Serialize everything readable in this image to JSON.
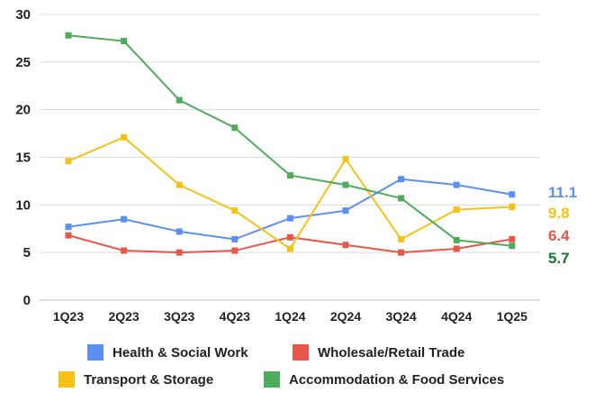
{
  "chart_data": {
    "type": "line",
    "categories": [
      "1Q23",
      "2Q23",
      "3Q23",
      "4Q23",
      "1Q24",
      "2Q24",
      "3Q24",
      "4Q24",
      "1Q25"
    ],
    "ylim": [
      0,
      30
    ],
    "yticks": [
      "0",
      "5",
      "10",
      "15",
      "20",
      "25",
      "30"
    ],
    "grid": true,
    "legend_position": "bottom",
    "series": [
      {
        "name": "Health & Social Work",
        "color": "#5b8ff0",
        "values": [
          7.7,
          8.5,
          7.2,
          6.4,
          8.6,
          9.4,
          12.7,
          12.1,
          11.1
        ],
        "end_label": "11.1"
      },
      {
        "name": "Wholesale/Retail Trade",
        "color": "#e9574b",
        "values": [
          6.8,
          5.2,
          5.0,
          5.2,
          6.6,
          5.8,
          5.0,
          5.4,
          6.4
        ],
        "end_label": "6.4"
      },
      {
        "name": "Transport & Storage",
        "color": "#f5c218",
        "values": [
          14.6,
          17.1,
          12.1,
          9.4,
          5.4,
          14.8,
          6.4,
          9.5,
          9.8
        ],
        "end_label": "9.8"
      },
      {
        "name": "Accommodation & Food Services",
        "color": "#4fac5b",
        "values": [
          27.8,
          27.2,
          21.0,
          18.1,
          13.1,
          12.1,
          10.7,
          6.3,
          5.7
        ],
        "end_label": "5.7"
      }
    ],
    "end_label_colors": [
      "#5b8ff0",
      "#f5c218",
      "#e9574b",
      "#157a30"
    ]
  }
}
